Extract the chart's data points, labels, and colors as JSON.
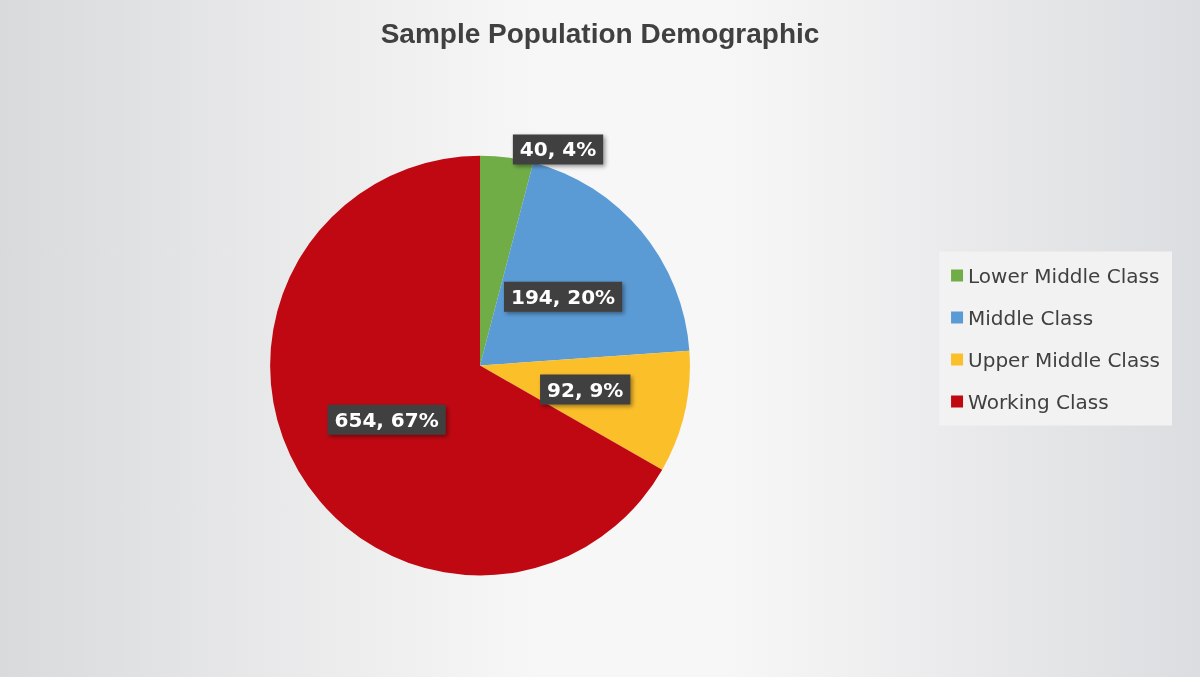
{
  "chart_data": {
    "type": "pie",
    "title": "Sample Population Demographic",
    "categories": [
      "Lower Middle Class",
      "Middle Class",
      "Upper Middle Class",
      "Working Class"
    ],
    "values": [
      40,
      194,
      92,
      654
    ],
    "value_labels": [
      "40, 4%",
      "194, 20%",
      "92, 9%",
      "654, 67%"
    ],
    "colors": [
      "#70ad47",
      "#5b9bd5",
      "#fbbf2a",
      "#c00812"
    ],
    "legend": "right"
  }
}
